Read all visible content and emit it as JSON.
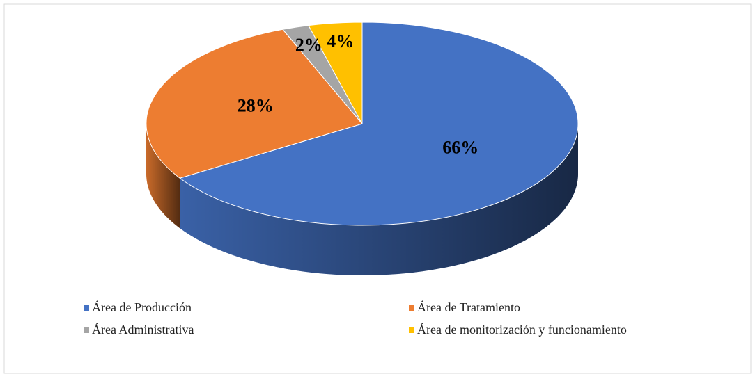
{
  "chart_data": {
    "type": "pie",
    "categories": [
      "Área de Producción",
      "Área de Tratamiento",
      "Área Administrativa",
      "Área de monitorización y funcionamiento"
    ],
    "values": [
      66,
      28,
      2,
      4
    ],
    "value_labels": [
      "66%",
      "28%",
      "2%",
      "4%"
    ],
    "colors": [
      "#4472c4",
      "#ed7d31",
      "#a5a5a5",
      "#ffc000"
    ],
    "legend": "bottom"
  }
}
